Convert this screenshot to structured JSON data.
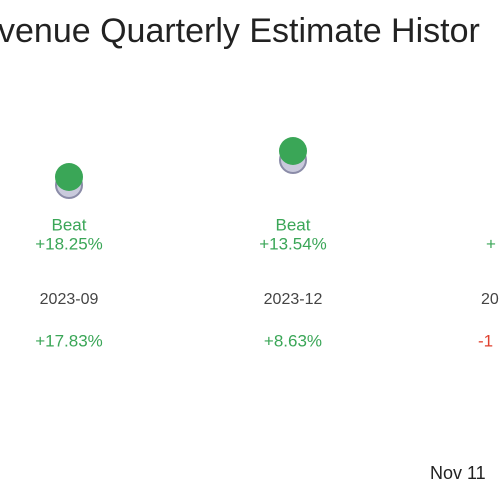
{
  "title": "venue Quarterly Estimate Histor",
  "columns": [
    {
      "result": "Beat",
      "surprise": "+18.25%",
      "period": "2023-09",
      "change": "+17.83%"
    },
    {
      "result": "Beat",
      "surprise": "+13.54%",
      "period": "2023-12",
      "change": "+8.63%"
    },
    {
      "result": "",
      "surprise": "+",
      "period": "20",
      "change": "-1"
    }
  ],
  "footer": "Nov 11"
}
